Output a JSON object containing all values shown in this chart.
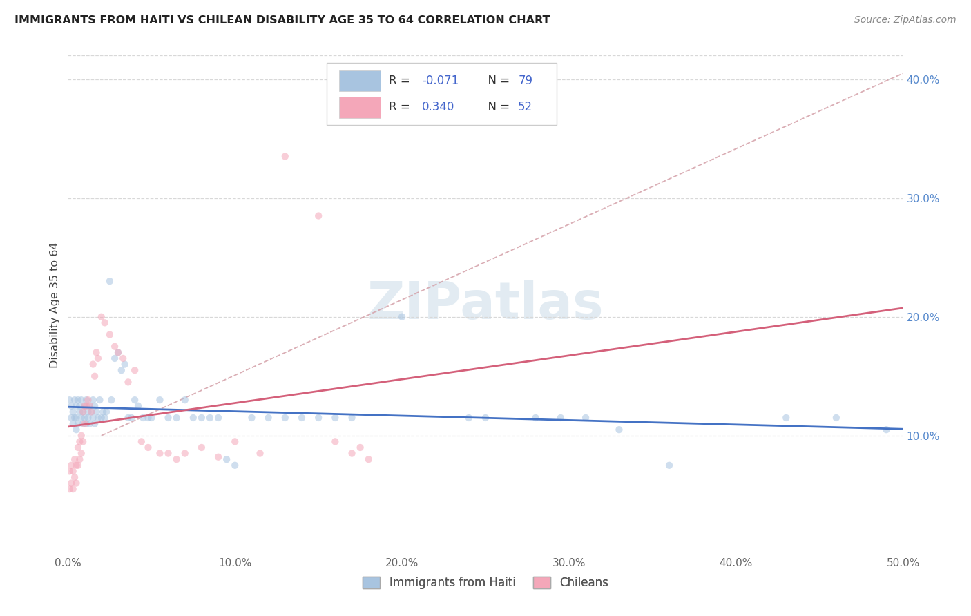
{
  "title": "IMMIGRANTS FROM HAITI VS CHILEAN DISABILITY AGE 35 TO 64 CORRELATION CHART",
  "source": "Source: ZipAtlas.com",
  "ylabel": "Disability Age 35 to 64",
  "xlim": [
    0.0,
    0.5
  ],
  "ylim": [
    0.0,
    0.42
  ],
  "xticks": [
    0.0,
    0.1,
    0.2,
    0.3,
    0.4,
    0.5
  ],
  "xtick_labels": [
    "0.0%",
    "10.0%",
    "20.0%",
    "30.0%",
    "40.0%",
    "50.0%"
  ],
  "ytick_positions_right": [
    0.1,
    0.2,
    0.3,
    0.4
  ],
  "ytick_labels_right": [
    "10.0%",
    "20.0%",
    "30.0%",
    "40.0%"
  ],
  "r_haiti": -0.071,
  "n_haiti": 79,
  "r_chilean": 0.34,
  "n_chilean": 52,
  "haiti_color": "#a8c4e0",
  "chilean_color": "#f4a7b9",
  "haiti_line_color": "#4472C4",
  "chilean_line_color": "#D4607A",
  "dash_line_color": "#D4A0A8",
  "background_color": "#ffffff",
  "grid_color": "#d8d8d8",
  "legend_label_haiti": "Immigrants from Haiti",
  "legend_label_chilean": "Chileans",
  "watermark": "ZIPatlas",
  "marker_size": 55,
  "alpha_scatter": 0.55,
  "haiti_x": [
    0.001,
    0.002,
    0.002,
    0.003,
    0.003,
    0.004,
    0.004,
    0.005,
    0.005,
    0.005,
    0.006,
    0.006,
    0.007,
    0.007,
    0.008,
    0.008,
    0.009,
    0.009,
    0.01,
    0.01,
    0.011,
    0.011,
    0.012,
    0.012,
    0.013,
    0.013,
    0.014,
    0.015,
    0.015,
    0.016,
    0.016,
    0.017,
    0.018,
    0.019,
    0.02,
    0.021,
    0.022,
    0.023,
    0.025,
    0.026,
    0.028,
    0.03,
    0.032,
    0.034,
    0.036,
    0.038,
    0.04,
    0.042,
    0.045,
    0.048,
    0.05,
    0.055,
    0.06,
    0.065,
    0.07,
    0.075,
    0.08,
    0.085,
    0.09,
    0.095,
    0.1,
    0.11,
    0.12,
    0.13,
    0.14,
    0.15,
    0.16,
    0.17,
    0.2,
    0.24,
    0.25,
    0.28,
    0.295,
    0.31,
    0.33,
    0.36,
    0.43,
    0.46,
    0.49
  ],
  "haiti_y": [
    0.13,
    0.125,
    0.115,
    0.12,
    0.11,
    0.13,
    0.115,
    0.125,
    0.115,
    0.105,
    0.13,
    0.11,
    0.12,
    0.125,
    0.115,
    0.13,
    0.12,
    0.11,
    0.125,
    0.115,
    0.13,
    0.11,
    0.12,
    0.115,
    0.125,
    0.11,
    0.12,
    0.13,
    0.115,
    0.125,
    0.11,
    0.12,
    0.115,
    0.13,
    0.115,
    0.12,
    0.115,
    0.12,
    0.23,
    0.13,
    0.165,
    0.17,
    0.155,
    0.16,
    0.115,
    0.115,
    0.13,
    0.125,
    0.115,
    0.115,
    0.115,
    0.13,
    0.115,
    0.115,
    0.13,
    0.115,
    0.115,
    0.115,
    0.115,
    0.08,
    0.075,
    0.115,
    0.115,
    0.115,
    0.115,
    0.115,
    0.115,
    0.115,
    0.2,
    0.115,
    0.115,
    0.115,
    0.115,
    0.115,
    0.105,
    0.075,
    0.115,
    0.115,
    0.105
  ],
  "chilean_x": [
    0.001,
    0.001,
    0.002,
    0.002,
    0.003,
    0.003,
    0.004,
    0.004,
    0.005,
    0.005,
    0.006,
    0.006,
    0.007,
    0.007,
    0.008,
    0.008,
    0.009,
    0.009,
    0.01,
    0.01,
    0.011,
    0.012,
    0.013,
    0.014,
    0.015,
    0.016,
    0.017,
    0.018,
    0.02,
    0.022,
    0.025,
    0.028,
    0.03,
    0.033,
    0.036,
    0.04,
    0.044,
    0.048,
    0.055,
    0.06,
    0.065,
    0.07,
    0.08,
    0.09,
    0.1,
    0.115,
    0.13,
    0.15,
    0.16,
    0.17,
    0.175,
    0.18
  ],
  "chilean_y": [
    0.07,
    0.055,
    0.075,
    0.06,
    0.07,
    0.055,
    0.08,
    0.065,
    0.075,
    0.06,
    0.09,
    0.075,
    0.095,
    0.08,
    0.1,
    0.085,
    0.12,
    0.095,
    0.125,
    0.11,
    0.125,
    0.13,
    0.125,
    0.12,
    0.16,
    0.15,
    0.17,
    0.165,
    0.2,
    0.195,
    0.185,
    0.175,
    0.17,
    0.165,
    0.145,
    0.155,
    0.095,
    0.09,
    0.085,
    0.085,
    0.08,
    0.085,
    0.09,
    0.082,
    0.095,
    0.085,
    0.335,
    0.285,
    0.095,
    0.085,
    0.09,
    0.08
  ]
}
